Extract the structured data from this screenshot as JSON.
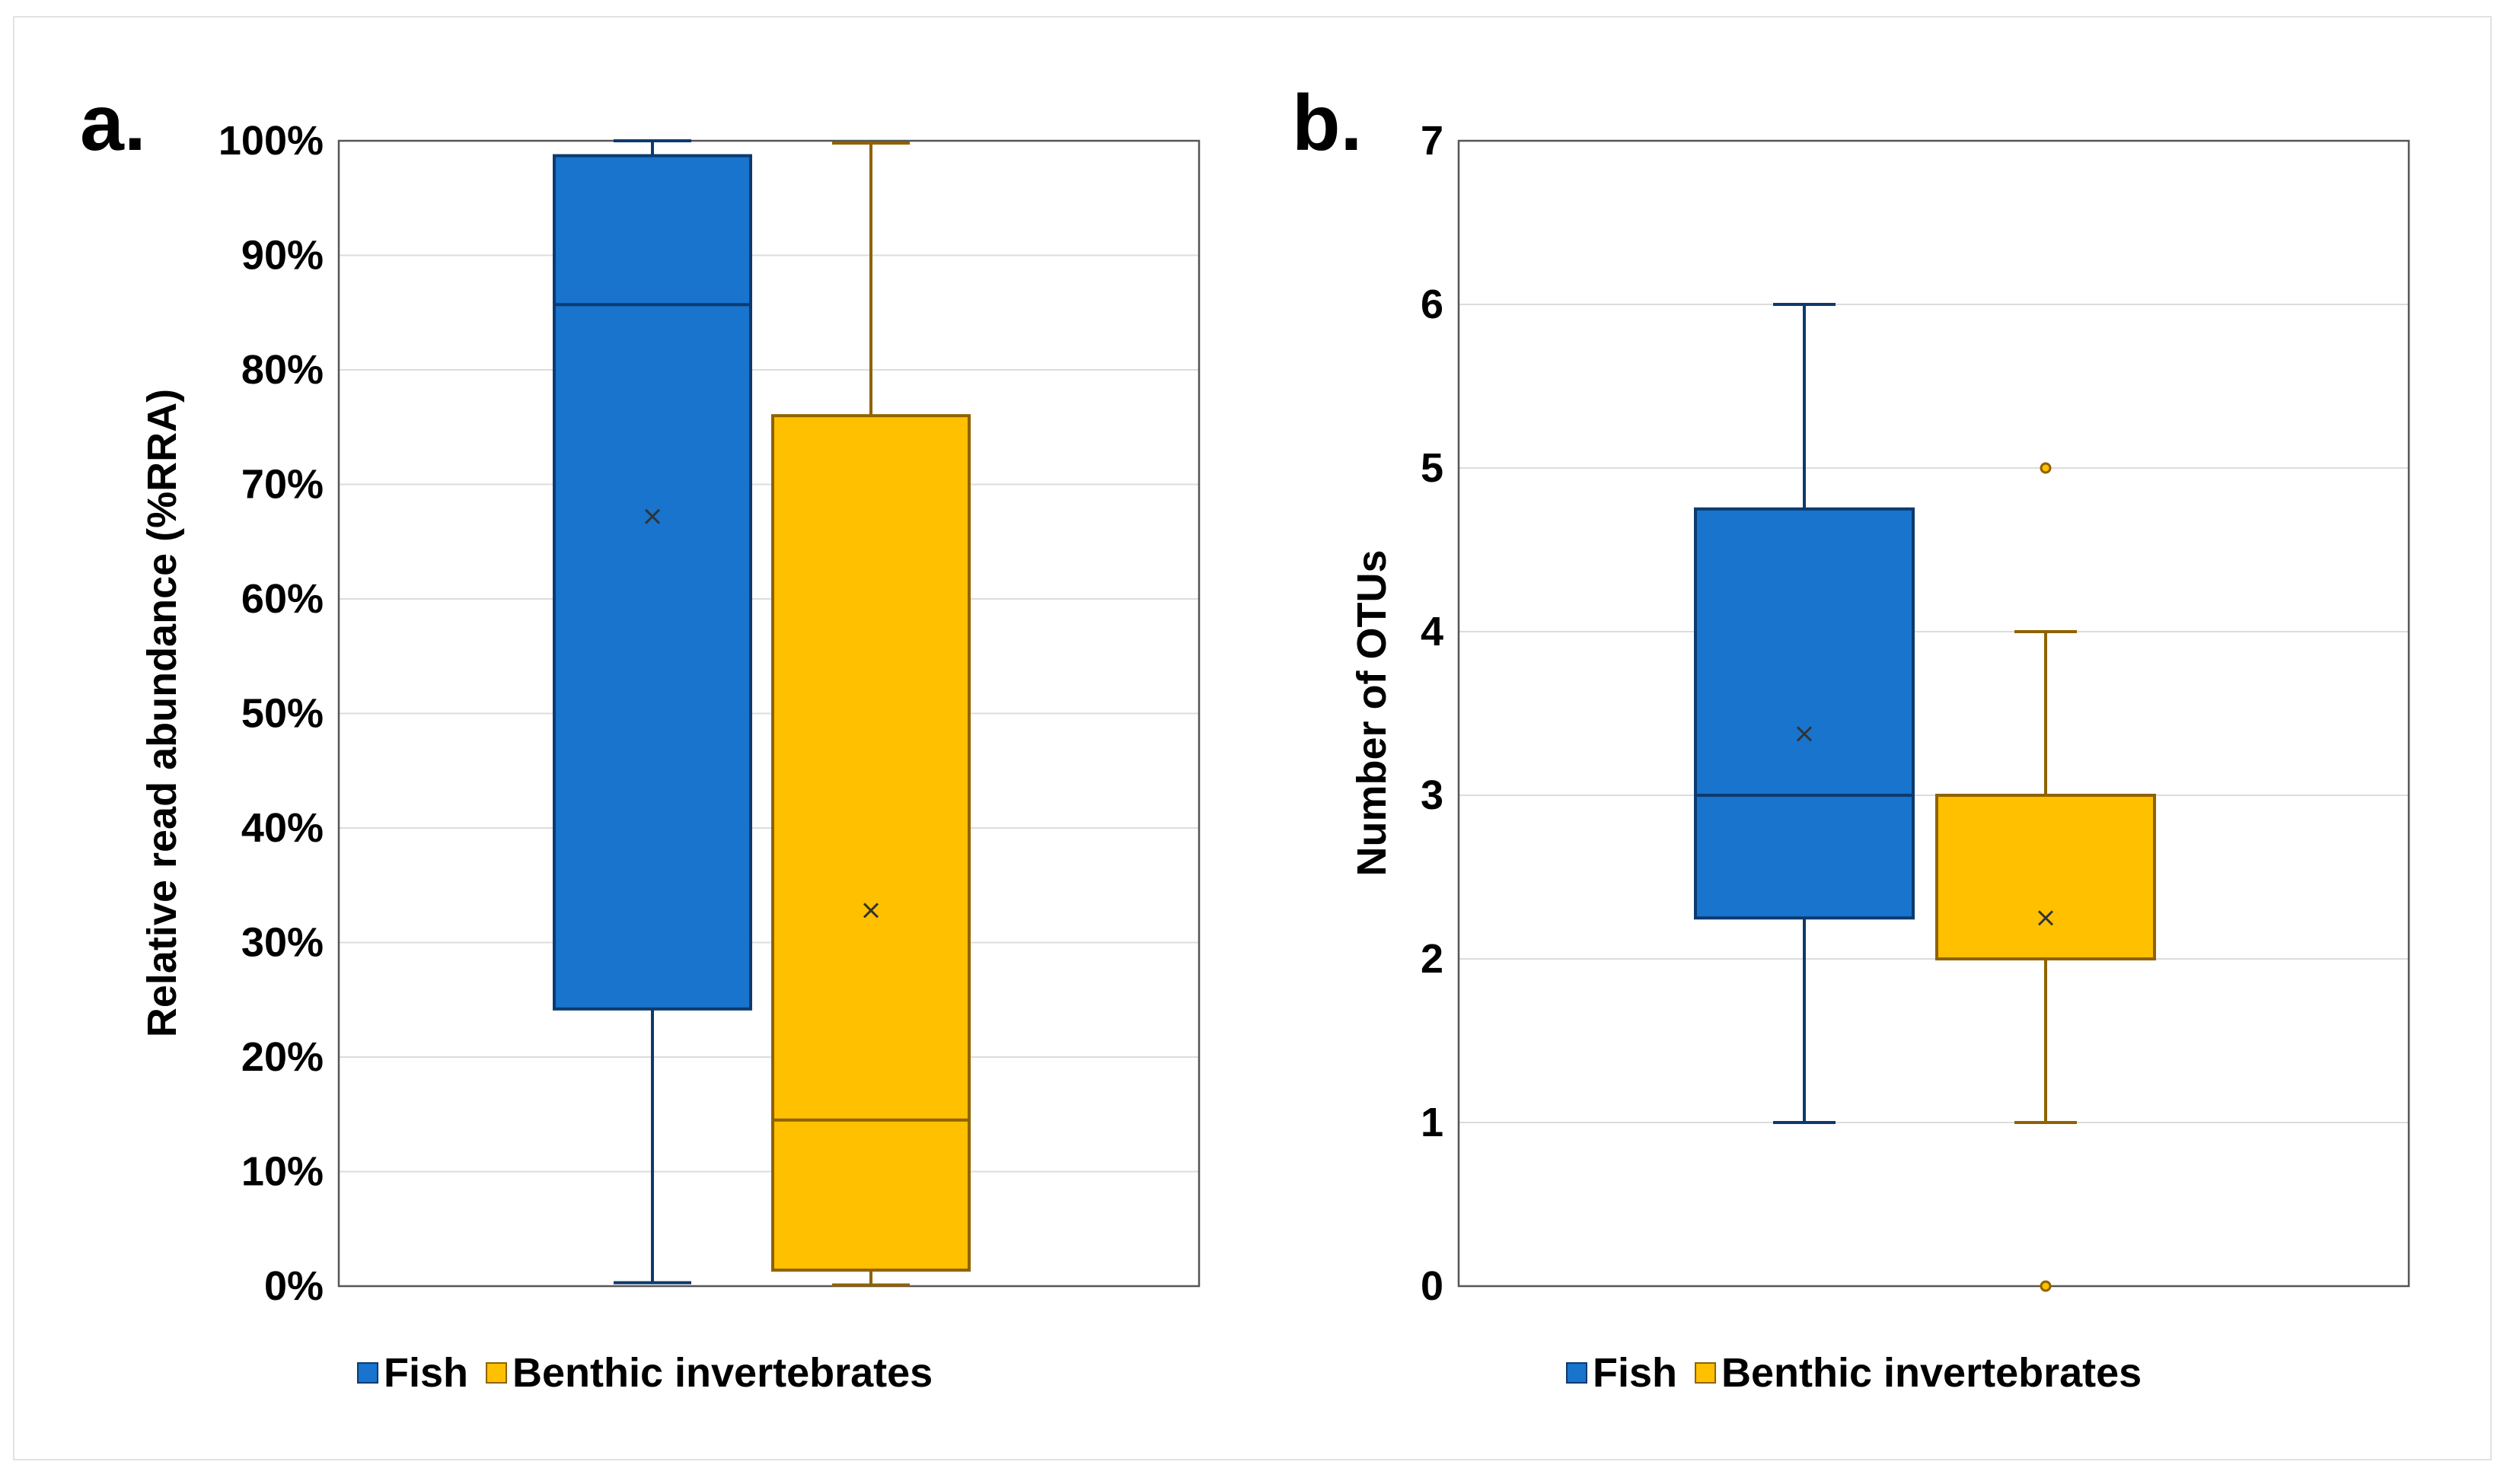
{
  "colors": {
    "fish_fill": "#1874CD",
    "fish_edge": "#0D3A6E",
    "benthic_fill": "#FFC000",
    "benthic_edge": "#8F6200",
    "grid": "#dcdcdc",
    "axis": "#555555"
  },
  "chart_data": [
    {
      "type": "box",
      "panel_label": "a.",
      "title": "",
      "xlabel": "",
      "ylabel": "Relative read abundance (%RRA)",
      "ylim": [
        0,
        100
      ],
      "yticks": [
        0,
        10,
        20,
        30,
        40,
        50,
        60,
        70,
        80,
        90,
        100
      ],
      "ytick_labels": [
        "0%",
        "10%",
        "20%",
        "30%",
        "40%",
        "50%",
        "60%",
        "70%",
        "80%",
        "90%",
        "100%"
      ],
      "grid": true,
      "legend": {
        "position": "bottom",
        "entries": [
          "Fish",
          "Benthic invertebrates"
        ]
      },
      "series": [
        {
          "name": "Fish",
          "min": 0.3,
          "q1": 24.2,
          "median": 85.7,
          "q3": 98.7,
          "max": 100,
          "mean": 67.2,
          "outliers": []
        },
        {
          "name": "Benthic invertebrates",
          "min": 0.1,
          "q1": 1.4,
          "median": 14.5,
          "q3": 76.0,
          "max": 99.8,
          "mean": 32.8,
          "outliers": []
        }
      ]
    },
    {
      "type": "box",
      "panel_label": "b.",
      "title": "",
      "xlabel": "",
      "ylabel": "Number of OTUs",
      "ylim": [
        0,
        7
      ],
      "yticks": [
        0,
        1,
        2,
        3,
        4,
        5,
        6,
        7
      ],
      "ytick_labels": [
        "0",
        "1",
        "2",
        "3",
        "4",
        "5",
        "6",
        "7"
      ],
      "grid": true,
      "legend": {
        "position": "bottom",
        "entries": [
          "Fish",
          "Benthic invertebrates"
        ]
      },
      "series": [
        {
          "name": "Fish",
          "min": 1,
          "q1": 2.25,
          "median": 3,
          "q3": 4.75,
          "max": 6,
          "mean": 3.375,
          "outliers": []
        },
        {
          "name": "Benthic invertebrates",
          "min": 1,
          "q1": 2,
          "median": 3,
          "q3": 3,
          "max": 4,
          "mean": 2.25,
          "outliers": [
            5,
            0
          ]
        }
      ]
    }
  ]
}
